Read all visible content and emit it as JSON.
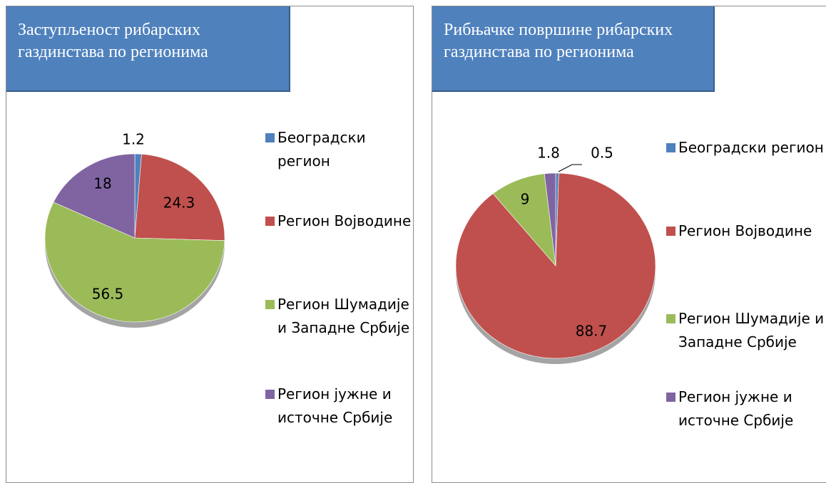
{
  "chart_data": [
    {
      "type": "pie",
      "title": "Заступљеност рибарских газдинстава по регионима",
      "categories": [
        "Београдски регион",
        "Регион Војводине",
        "Регион Шумадије и Западне Србије",
        "Регион јужне и источне Србије"
      ],
      "values": [
        1.2,
        24.3,
        56.5,
        18
      ],
      "colors": [
        "#4f81bd",
        "#c0504d",
        "#9bbb59",
        "#8064a2"
      ],
      "legend": "right"
    },
    {
      "type": "pie",
      "title": "Рибњачке површине рибарских газдинстава по регионима",
      "categories": [
        "Београдски регион",
        "Регион Војводине",
        "Регион Шумадије и Западне Србије",
        "Регион јужне и источне Србије"
      ],
      "values": [
        0.5,
        88.7,
        9,
        1.8
      ],
      "colors": [
        "#4f81bd",
        "#c0504d",
        "#9bbb59",
        "#8064a2"
      ],
      "legend": "right"
    }
  ]
}
